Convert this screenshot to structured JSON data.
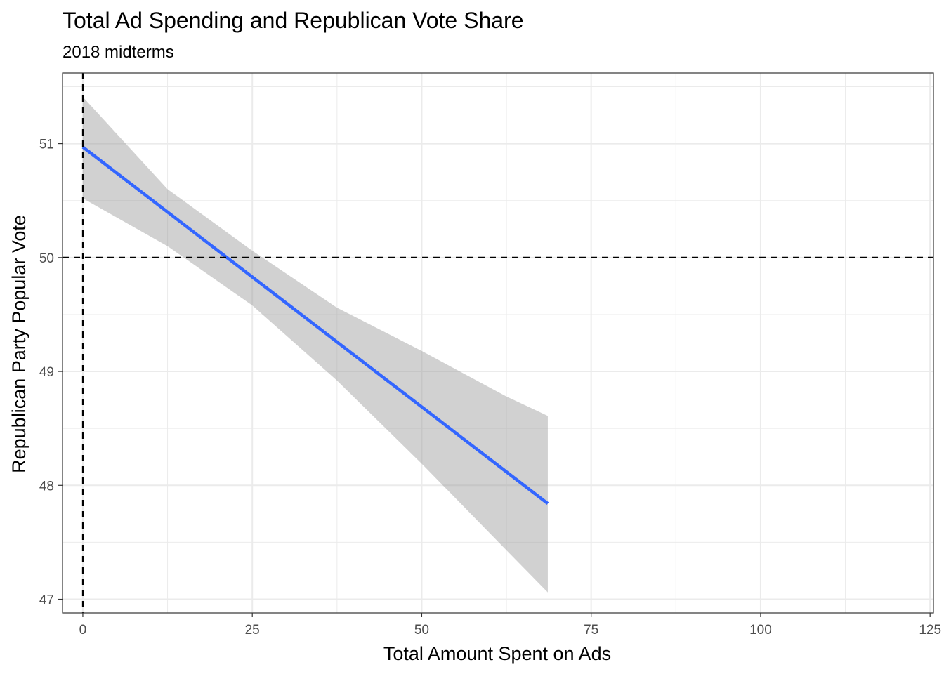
{
  "chart_data": {
    "type": "line",
    "title": "Total Ad Spending and Republican Vote Share",
    "subtitle": "2018 midterms",
    "xlabel": "Total Amount Spent on Ads",
    "ylabel": "Republican Party Popular Vote",
    "xlim": [
      -3,
      125.5
    ],
    "ylim": [
      46.88,
      51.62
    ],
    "x_ticks": [
      0,
      25,
      50,
      75,
      100,
      125
    ],
    "x_tick_labels": [
      "0",
      "25",
      "50",
      "75",
      "100",
      "125"
    ],
    "y_ticks": [
      47,
      48,
      49,
      50,
      51
    ],
    "y_tick_labels": [
      "47",
      "48",
      "49",
      "50",
      "51"
    ],
    "grid": true,
    "reference_lines": [
      {
        "orientation": "vertical",
        "value": 0,
        "style": "dashed"
      },
      {
        "orientation": "horizontal",
        "value": 50,
        "style": "dashed"
      }
    ],
    "series": [
      {
        "x": [
          0,
          68.6
        ],
        "y": [
          50.97,
          47.84
        ]
      }
    ],
    "confidence_band": {
      "x": [
        0,
        12.5,
        25,
        37.5,
        50,
        62.5,
        68.6
      ],
      "lower": [
        50.52,
        50.1,
        49.58,
        48.92,
        48.19,
        47.43,
        47.06
      ],
      "upper": [
        51.41,
        50.6,
        50.06,
        49.56,
        49.18,
        48.78,
        48.61
      ]
    },
    "colors": {
      "line": "#3366ff",
      "band": "#999999",
      "grid": "#ebebeb",
      "reference": "#000000"
    }
  }
}
